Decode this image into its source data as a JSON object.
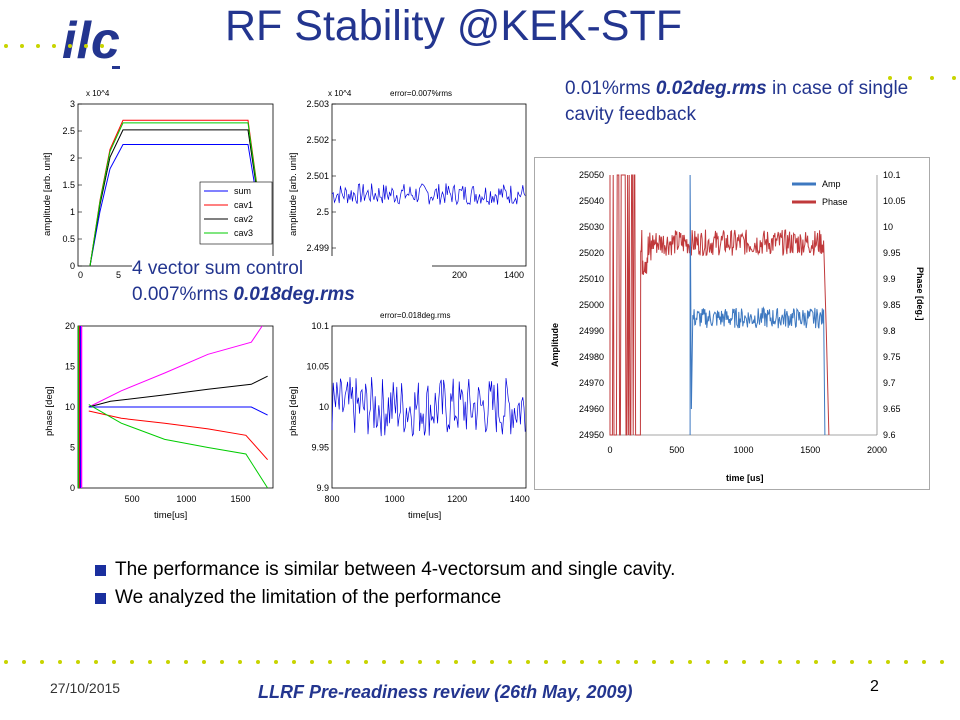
{
  "slide": {
    "title": "RF Stability @KEK-STF",
    "logo_text": "ilc",
    "caption_right": {
      "part1": "0.01%rms ",
      "part2": "0.02deg.rms",
      "part3": " in case of single cavity feedback"
    },
    "caption_left": {
      "line1": "4 vector sum control",
      "line2a": "0.007%rms ",
      "line2b": "0.018deg.rms"
    },
    "bullets": [
      "The performance is similar between 4-vectorsum and single cavity.",
      "We analyzed the limitation of the performance"
    ],
    "footer": {
      "date": "27/10/2015",
      "title": "LLRF Pre-readiness review (26th May, 2009)",
      "page": "2"
    },
    "colors": {
      "title": "#23358f",
      "dots": "#c8d400",
      "bullet": "#1a2f9e"
    }
  },
  "chart_data": [
    {
      "type": "line",
      "ylabel": "amplitude [arb. unit]",
      "multiplier": "x 10^4",
      "yticks": [
        "0",
        "0.5",
        "1",
        "1.5",
        "2",
        "2.5",
        "3"
      ],
      "ylim": [
        0,
        3
      ],
      "xticks_visible": [
        "0",
        "5"
      ],
      "legend": [
        "sum",
        "cav1",
        "cav2",
        "cav3"
      ],
      "series_colors": [
        "#0000ff",
        "#ff0000",
        "#000000",
        "#00cc00"
      ],
      "series": [
        {
          "name": "sum",
          "flat_top": 2.25
        },
        {
          "name": "cav1",
          "flat_top": 2.7
        },
        {
          "name": "cav2",
          "flat_top": 2.52
        },
        {
          "name": "cav3",
          "flat_top": 2.65
        }
      ]
    },
    {
      "type": "line",
      "title": "error=0.007%rms",
      "ylabel": "amplitude [arb. unit]",
      "multiplier": "x 10^4",
      "yticks": [
        "2.499",
        "2.5",
        "2.501",
        "2.502",
        "2.503"
      ],
      "ylim": [
        2.4985,
        2.503
      ],
      "xticks_visible": [
        "200",
        "1400"
      ],
      "series": [
        {
          "name": "",
          "mean": 2.5005,
          "noise": 0.0003
        }
      ]
    },
    {
      "type": "line",
      "ylabel": "phase [deg]",
      "xlabel": "time[us]",
      "yticks": [
        "0",
        "5",
        "10",
        "15",
        "20"
      ],
      "ylim": [
        0,
        20
      ],
      "xticks": [
        "500",
        "1000",
        "1500"
      ],
      "xlim": [
        0,
        1800
      ]
    },
    {
      "type": "line",
      "title": "error=0.018deg.rms",
      "ylabel": "phase [deg]",
      "xlabel": "time[us]",
      "yticks": [
        "9.9",
        "9.95",
        "10",
        "10.05",
        "10.1"
      ],
      "ylim": [
        9.9,
        10.1
      ],
      "xticks": [
        "800",
        "1000",
        "1200",
        "1400"
      ],
      "xlim": [
        800,
        1420
      ]
    },
    {
      "type": "line",
      "ylabel": "Amplitude",
      "y2label": "Phase [deg.]",
      "xlabel": "time [us]",
      "yticks": [
        "24950",
        "24960",
        "24970",
        "24980",
        "24990",
        "25000",
        "25010",
        "25020",
        "25030",
        "25040",
        "25050"
      ],
      "y2ticks": [
        "9.6",
        "9.65",
        "9.7",
        "9.75",
        "9.8",
        "9.85",
        "9.9",
        "9.95",
        "10",
        "10.05",
        "10.1"
      ],
      "xticks": [
        "0",
        "500",
        "1000",
        "1500",
        "2000"
      ],
      "xlim": [
        0,
        2000
      ],
      "ylim": [
        24950,
        25050
      ],
      "y2lim": [
        9.6,
        10.1
      ],
      "legend": [
        "Amp",
        "Phase"
      ],
      "series_colors": [
        "#3d78c0",
        "#c0393b"
      ],
      "series": [
        {
          "name": "Amp",
          "steady": 24995,
          "x_start": 600,
          "x_end": 1600
        },
        {
          "name": "Phase",
          "steady": 9.97,
          "x_start": 300,
          "x_end": 1600
        }
      ]
    }
  ]
}
